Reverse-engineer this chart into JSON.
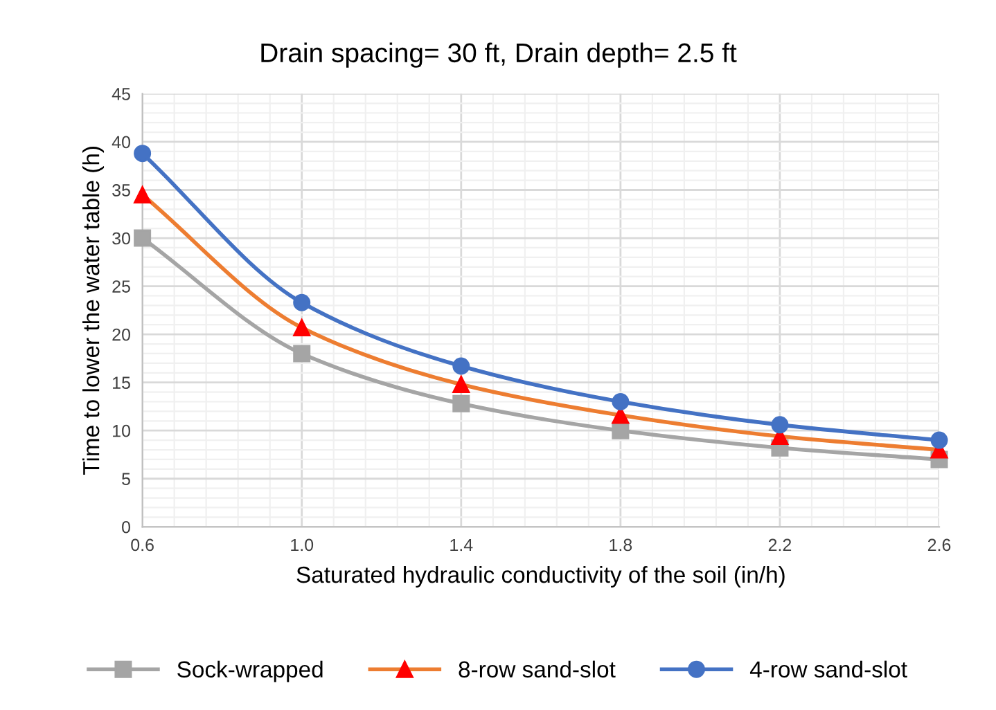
{
  "chart_data": {
    "type": "line",
    "title": "Drain spacing= 30 ft, Drain depth= 2.5 ft",
    "xlabel": "Saturated hydraulic conductivity of the soil (in/h)",
    "ylabel": "Time to lower the water table (h)",
    "x": [
      0.6,
      1.0,
      1.4,
      1.8,
      2.2,
      2.6
    ],
    "series": [
      {
        "name": "Sock-wrapped",
        "color": "#a5a5a5",
        "marker": "square",
        "values": [
          30,
          18,
          12.8,
          10,
          8.2,
          7
        ]
      },
      {
        "name": "8-row sand-slot",
        "color": "#ed7d31",
        "colors": [
          "#ff0000",
          "#ff0000",
          "#ff0000",
          "#ff0000",
          "#ff0000",
          "#ff0000"
        ],
        "marker": "triangle",
        "values": [
          34.5,
          20.7,
          14.8,
          11.6,
          9.4,
          8
        ]
      },
      {
        "name": "4-row sand-slot",
        "color": "#4472c4",
        "marker": "circle",
        "values": [
          38.8,
          23.3,
          16.7,
          13,
          10.6,
          9
        ]
      }
    ],
    "xlim": [
      0.6,
      2.6
    ],
    "xticks": [
      {
        "value": 0.6,
        "label": "0.6"
      },
      {
        "value": 1.0,
        "label": "1.0"
      },
      {
        "value": 1.4,
        "label": "1.4"
      },
      {
        "value": 1.8,
        "label": "1.8"
      },
      {
        "value": 2.2,
        "label": "2.2"
      },
      {
        "value": 2.6,
        "label": "2.6"
      }
    ],
    "ylim": [
      0,
      45
    ],
    "yticks": [
      0,
      5,
      10,
      15,
      20,
      25,
      30,
      35,
      40,
      45
    ],
    "grid": true,
    "legend": "bottom",
    "line_style": "solid"
  }
}
